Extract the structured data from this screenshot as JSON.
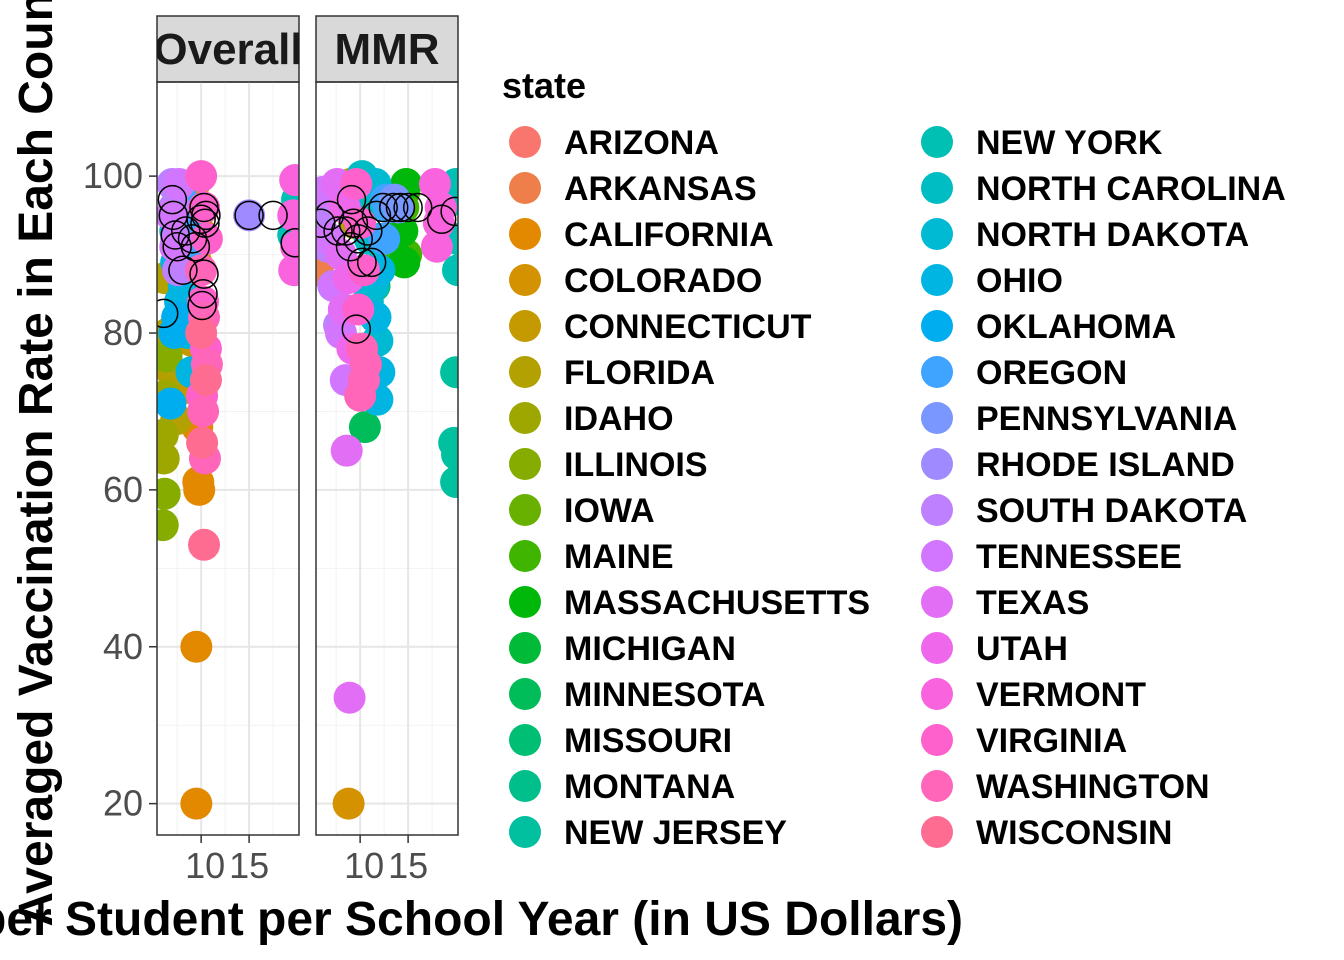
{
  "chart_data": {
    "type": "scatter",
    "xlabel": "per Student per School Year (in US Dollars)",
    "ylabel": "Averaged Vaccination Rate in Each County",
    "legend_title": "state",
    "legend_position": "right",
    "grid": true,
    "facets": [
      "Overall",
      "MMR"
    ],
    "x_ticks": [
      10,
      15
    ],
    "y_ticks": [
      20,
      40,
      60,
      80,
      100
    ],
    "xlim": [
      5.4,
      20.2
    ],
    "ylim": [
      16,
      112
    ],
    "states": [
      {
        "name": "ARIZONA",
        "color": "#F8766D"
      },
      {
        "name": "ARKANSAS",
        "color": "#EF7F4A"
      },
      {
        "name": "CALIFORNIA",
        "color": "#E38900"
      },
      {
        "name": "COLORADO",
        "color": "#D49200"
      },
      {
        "name": "CONNECTICUT",
        "color": "#C49A00"
      },
      {
        "name": "FLORIDA",
        "color": "#B2A100"
      },
      {
        "name": "IDAHO",
        "color": "#9DA700"
      },
      {
        "name": "ILLINOIS",
        "color": "#86AC00"
      },
      {
        "name": "IOWA",
        "color": "#69B100"
      },
      {
        "name": "MAINE",
        "color": "#3FB500"
      },
      {
        "name": "MASSACHUSETTS",
        "color": "#00B809"
      },
      {
        "name": "MICHIGAN",
        "color": "#00BA38"
      },
      {
        "name": "MINNESOTA",
        "color": "#00BC59"
      },
      {
        "name": "MISSOURI",
        "color": "#00BE74"
      },
      {
        "name": "MONTANA",
        "color": "#00BF8B"
      },
      {
        "name": "NEW JERSEY",
        "color": "#00C0A0"
      },
      {
        "name": "NEW YORK",
        "color": "#00BFB3"
      },
      {
        "name": "NORTH CAROLINA",
        "color": "#00BDC4"
      },
      {
        "name": "NORTH DAKOTA",
        "color": "#00BAD4"
      },
      {
        "name": "OHIO",
        "color": "#00B5E2"
      },
      {
        "name": "OKLAHOMA",
        "color": "#00AEEF"
      },
      {
        "name": "OREGON",
        "color": "#3FA4FF"
      },
      {
        "name": "PENNSYLVANIA",
        "color": "#7997FF"
      },
      {
        "name": "RHODE ISLAND",
        "color": "#A08AFF"
      },
      {
        "name": "SOUTH DAKOTA",
        "color": "#BE80FF"
      },
      {
        "name": "TENNESSEE",
        "color": "#D376FF"
      },
      {
        "name": "TEXAS",
        "color": "#E36EF6"
      },
      {
        "name": "UTAH",
        "color": "#EF67EB"
      },
      {
        "name": "VERMONT",
        "color": "#F963DD"
      },
      {
        "name": "VIRGINIA",
        "color": "#FF61CC"
      },
      {
        "name": "WASHINGTON",
        "color": "#FF65B8"
      },
      {
        "name": "WISCONSIN",
        "color": "#FF6C91"
      }
    ],
    "series": [
      {
        "facet": "Overall",
        "state": "CALIFORNIA",
        "x": [
          9.5,
          9.5,
          9.7,
          9.8,
          9.6
        ],
        "y": [
          20,
          40,
          61,
          60,
          68
        ]
      },
      {
        "facet": "Overall",
        "state": "COLORADO",
        "x": [
          9.3,
          9.8,
          9.5
        ],
        "y": [
          99,
          93,
          89
        ]
      },
      {
        "facet": "Overall",
        "state": "CONNECTICUT",
        "x": [
          8.5,
          9.0,
          8.7
        ],
        "y": [
          86,
          79,
          73
        ]
      },
      {
        "facet": "Overall",
        "state": "FLORIDA",
        "x": [
          6.2,
          6.6,
          7.0,
          7.4
        ],
        "y": [
          87,
          80,
          75,
          69
        ]
      },
      {
        "facet": "Overall",
        "state": "IDAHO",
        "x": [
          6.0,
          6.1,
          6.3
        ],
        "y": [
          67,
          64,
          72
        ]
      },
      {
        "facet": "Overall",
        "state": "ILLINOIS",
        "x": [
          6.0,
          6.2,
          6.4
        ],
        "y": [
          55.5,
          59.5,
          77
        ]
      },
      {
        "facet": "Overall",
        "state": "NEW YORK",
        "x": [
          20.0,
          19.6,
          19.8
        ],
        "y": [
          97,
          92.5,
          95
        ]
      },
      {
        "facet": "Overall",
        "state": "NORTH DAKOTA",
        "x": [
          7.6,
          8.0,
          8.4,
          8.8,
          7.3
        ],
        "y": [
          97,
          91,
          86,
          83,
          93
        ]
      },
      {
        "facet": "Overall",
        "state": "OHIO",
        "x": [
          7.0,
          7.4,
          7.8,
          8.2,
          8.6,
          9.0
        ],
        "y": [
          95,
          89,
          84,
          86,
          80,
          75
        ]
      },
      {
        "facet": "Overall",
        "state": "OKLAHOMA",
        "x": [
          6.8,
          7.2,
          7.5
        ],
        "y": [
          71,
          80,
          82
        ]
      },
      {
        "facet": "Overall",
        "state": "OREGON",
        "x": [
          8.0,
          8.3,
          8.6
        ],
        "y": [
          97,
          94,
          91
        ]
      },
      {
        "facet": "Overall",
        "state": "RHODE ISLAND",
        "x": [
          15.0
        ],
        "y": [
          95
        ]
      },
      {
        "facet": "Overall",
        "state": "SOUTH DAKOTA",
        "x": [
          7.0,
          7.2,
          7.4,
          7.6
        ],
        "y": [
          99,
          96,
          92,
          88
        ]
      },
      {
        "facet": "Overall",
        "state": "TENNESSEE",
        "x": [
          6.9,
          7.3,
          7.7
        ],
        "y": [
          95,
          91,
          99
        ]
      },
      {
        "facet": "Overall",
        "state": "VERMONT",
        "x": [
          19.8,
          19.6,
          19.9,
          19.7
        ],
        "y": [
          99.5,
          95,
          91,
          88
        ]
      },
      {
        "facet": "Overall",
        "state": "VIRGINIA",
        "x": [
          10.0,
          10.3,
          10.6,
          10.2,
          10.5,
          10.1
        ],
        "y": [
          100,
          96,
          92,
          84,
          78,
          72
        ]
      },
      {
        "facet": "Overall",
        "state": "WASHINGTON",
        "x": [
          10.0,
          10.3,
          10.6,
          10.2,
          10.4
        ],
        "y": [
          88,
          82,
          76,
          70,
          64
        ]
      },
      {
        "facet": "Overall",
        "state": "WISCONSIN",
        "x": [
          10.3,
          10.1,
          10.5,
          10.0
        ],
        "y": [
          53,
          66,
          74,
          80
        ]
      },
      {
        "facet": "MMR",
        "state": "ARKANSAS",
        "x": [
          5.6
        ],
        "y": [
          88
        ]
      },
      {
        "facet": "MMR",
        "state": "COLORADO",
        "x": [
          8.8
        ],
        "y": [
          20
        ]
      },
      {
        "facet": "MMR",
        "state": "FLORIDA",
        "x": [
          9.0,
          9.4
        ],
        "y": [
          99,
          94
        ]
      },
      {
        "facet": "MMR",
        "state": "MAINE",
        "x": [
          14.6,
          14.5,
          14.8,
          13.3
        ],
        "y": [
          98,
          96,
          90,
          90
        ]
      },
      {
        "facet": "MMR",
        "state": "MASSACHUSETTS",
        "x": [
          14.8,
          14.4,
          14.6
        ],
        "y": [
          99,
          93,
          89
        ]
      },
      {
        "facet": "MMR",
        "state": "MICHIGAN",
        "x": [
          11.3,
          11.5
        ],
        "y": [
          92,
          86
        ]
      },
      {
        "facet": "MMR",
        "state": "MINNESOTA",
        "x": [
          10.5
        ],
        "y": [
          68
        ]
      },
      {
        "facet": "MMR",
        "state": "NEW JERSEY",
        "x": [
          20.0,
          19.8,
          20.1,
          20.0
        ],
        "y": [
          75,
          66,
          64.5,
          61
        ]
      },
      {
        "facet": "MMR",
        "state": "NEW YORK",
        "x": [
          20.0,
          19.9,
          20.1,
          20.2
        ],
        "y": [
          99,
          97,
          92,
          88
        ]
      },
      {
        "facet": "MMR",
        "state": "NORTH CAROLINA",
        "x": [
          10.2,
          10.6,
          11.0,
          11.4,
          10.8,
          11.6
        ],
        "y": [
          100,
          96,
          92,
          88,
          84,
          98
        ]
      },
      {
        "facet": "MMR",
        "state": "NORTH DAKOTA",
        "x": [
          11.6,
          12.0,
          11.4,
          11.8
        ],
        "y": [
          99,
          92,
          86,
          79
        ]
      },
      {
        "facet": "MMR",
        "state": "OHIO",
        "x": [
          12.0,
          11.8,
          11.6,
          12.0
        ],
        "y": [
          75,
          71.5,
          82,
          88
        ]
      },
      {
        "facet": "MMR",
        "state": "OREGON",
        "x": [
          12.7,
          13.0,
          12.5
        ],
        "y": [
          97,
          96,
          92
        ]
      },
      {
        "facet": "MMR",
        "state": "PENNSYLVANIA",
        "x": [
          13.6,
          14.0
        ],
        "y": [
          97,
          96
        ]
      },
      {
        "facet": "MMR",
        "state": "SOUTH DAKOTA",
        "x": [
          6.0,
          6.6,
          7.2,
          7.8
        ],
        "y": [
          95,
          91,
          86,
          81
        ]
      },
      {
        "facet": "MMR",
        "state": "TENNESSEE",
        "x": [
          6.2,
          6.8,
          7.4,
          8.0,
          8.5
        ],
        "y": [
          98,
          92,
          86,
          80,
          74
        ]
      },
      {
        "facet": "MMR",
        "state": "TEXAS",
        "x": [
          7.6,
          8.0,
          8.3,
          8.6,
          8.9
        ],
        "y": [
          99,
          90,
          83,
          65,
          33.5
        ]
      },
      {
        "facet": "MMR",
        "state": "UTAH",
        "x": [
          8.4,
          8.8,
          9.2
        ],
        "y": [
          96,
          87,
          78
        ]
      },
      {
        "facet": "MMR",
        "state": "VIRGINIA",
        "x": [
          9.6,
          10.0,
          10.4,
          9.8
        ],
        "y": [
          99,
          94,
          88,
          83
        ]
      },
      {
        "facet": "MMR",
        "state": "VERMONT",
        "x": [
          17.8,
          18.2,
          18.0,
          18.4
        ],
        "y": [
          99,
          94,
          91,
          96
        ]
      },
      {
        "facet": "MMR",
        "state": "WASHINGTON",
        "x": [
          10.2,
          10.4,
          10.0,
          10.6
        ],
        "y": [
          78,
          74,
          72,
          76
        ]
      }
    ],
    "circled_points": [
      {
        "facet": "Overall",
        "x": [
          6.1,
          7.0,
          7.1,
          7.3,
          7.5,
          8.1,
          8.4,
          9.1,
          9.4,
          10.0,
          10.3,
          10.4,
          10.3,
          10.2,
          10.1,
          10.5,
          15.0,
          17.5,
          19.8
        ],
        "y": [
          82.5,
          97,
          95,
          92.5,
          91,
          88,
          93,
          92,
          91,
          94.5,
          96,
          94,
          87.5,
          85,
          83.5,
          95,
          95,
          95,
          91.5
        ]
      },
      {
        "facet": "MMR",
        "x": [
          5.9,
          6.8,
          7.7,
          8.5,
          9.0,
          9.3,
          9.8,
          10.2,
          10.8,
          11.2,
          11.7,
          12.4,
          13.5,
          14.2,
          15.0,
          16.0,
          18.5,
          19.9,
          9.6,
          9.1
        ],
        "y": [
          94,
          95,
          93,
          93,
          91,
          94,
          92,
          89,
          93,
          89,
          95,
          96,
          96,
          96,
          96,
          96,
          94.5,
          95.5,
          80.5,
          97
        ]
      }
    ]
  }
}
